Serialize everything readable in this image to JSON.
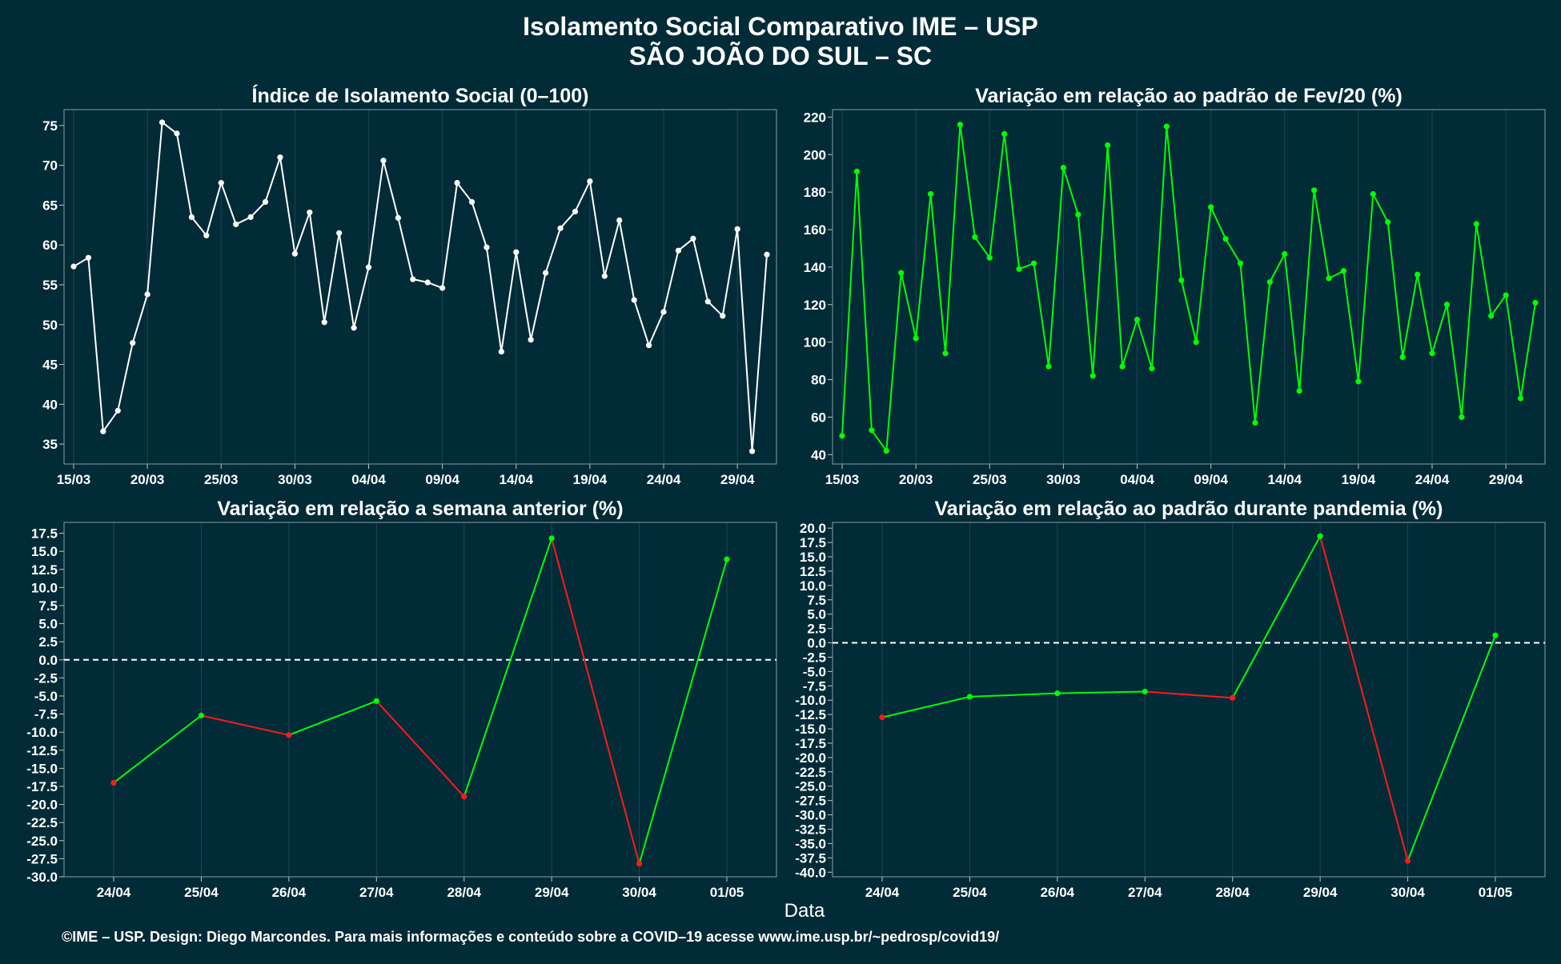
{
  "title_line1": "Isolamento Social Comparativo IME – USP",
  "title_line2": "SÃO JOÃO DO SUL – SC",
  "xlabel": "Data",
  "footer": "©IME – USP. Design: Diego Marcondes. Para mais informações e conteúdo sobre a COVID–19 acesse www.ime.usp.br/~pedrosp/covid19/",
  "colors": {
    "background": "#022b38",
    "white_series": "#ffffff",
    "green": "#00ff00",
    "red": "#ff1a1a",
    "axis_text": "#ffffff"
  },
  "chart_data": [
    {
      "type": "line",
      "title": "Índice de Isolamento Social (0–100)",
      "x": [
        "15/03",
        "16/03",
        "17/03",
        "18/03",
        "19/03",
        "20/03",
        "21/03",
        "22/03",
        "23/03",
        "24/03",
        "25/03",
        "26/03",
        "27/03",
        "28/03",
        "29/03",
        "30/03",
        "31/03",
        "01/04",
        "02/04",
        "03/04",
        "04/04",
        "05/04",
        "06/04",
        "07/04",
        "08/04",
        "09/04",
        "10/04",
        "11/04",
        "12/04",
        "13/04",
        "14/04",
        "15/04",
        "16/04",
        "17/04",
        "18/04",
        "19/04",
        "20/04",
        "21/04",
        "22/04",
        "23/04",
        "24/04",
        "25/04",
        "26/04",
        "27/04",
        "28/04",
        "29/04",
        "30/04",
        "01/05"
      ],
      "x_ticks": [
        "15/03",
        "20/03",
        "25/03",
        "30/03",
        "04/04",
        "09/04",
        "14/04",
        "19/04",
        "24/04",
        "29/04"
      ],
      "values": [
        57.3,
        58.4,
        36.6,
        39.2,
        47.7,
        53.8,
        75.4,
        74.0,
        63.5,
        61.2,
        67.8,
        62.6,
        63.5,
        65.4,
        71.0,
        58.9,
        64.1,
        50.3,
        61.5,
        49.6,
        57.2,
        70.6,
        63.4,
        55.7,
        55.3,
        54.6,
        67.8,
        65.4,
        59.7,
        46.6,
        59.1,
        48.1,
        56.5,
        62.1,
        64.2,
        68.0,
        56.1,
        63.1,
        53.1,
        47.4,
        51.6,
        59.3,
        60.8,
        52.9,
        51.1,
        62.0,
        34.1,
        58.8
      ],
      "ylim": [
        32.5,
        77.0
      ],
      "y_ticks": [
        35,
        40,
        45,
        50,
        55,
        60,
        65,
        70,
        75
      ],
      "color": "#ffffff"
    },
    {
      "type": "line",
      "title": "Variação em relação ao padrão de Fev/20 (%)",
      "x": [
        "15/03",
        "16/03",
        "17/03",
        "18/03",
        "19/03",
        "20/03",
        "21/03",
        "22/03",
        "23/03",
        "24/03",
        "25/03",
        "26/03",
        "27/03",
        "28/03",
        "29/03",
        "30/03",
        "31/03",
        "01/04",
        "02/04",
        "03/04",
        "04/04",
        "05/04",
        "06/04",
        "07/04",
        "08/04",
        "09/04",
        "10/04",
        "11/04",
        "12/04",
        "13/04",
        "14/04",
        "15/04",
        "16/04",
        "17/04",
        "18/04",
        "19/04",
        "20/04",
        "21/04",
        "22/04",
        "23/04",
        "24/04",
        "25/04",
        "26/04",
        "27/04",
        "28/04",
        "29/04",
        "30/04",
        "01/05"
      ],
      "x_ticks": [
        "15/03",
        "20/03",
        "25/03",
        "30/03",
        "04/04",
        "09/04",
        "14/04",
        "19/04",
        "24/04",
        "29/04"
      ],
      "values": [
        50,
        191,
        53,
        42,
        137,
        102,
        179,
        94,
        216,
        156,
        145,
        211,
        139,
        142,
        87,
        193,
        168,
        82,
        205,
        87,
        112,
        86,
        215,
        133,
        100,
        172,
        155,
        142,
        57,
        132,
        147,
        74,
        181,
        134,
        138,
        79,
        179,
        164,
        92,
        136,
        94,
        120,
        60,
        163,
        114,
        125,
        70,
        121
      ],
      "ylim": [
        35,
        224
      ],
      "y_ticks": [
        40,
        60,
        80,
        100,
        120,
        140,
        160,
        180,
        200,
        220
      ],
      "color": "#00ff00"
    },
    {
      "type": "line",
      "title": "Variação em relação a semana anterior (%)",
      "x": [
        "24/04",
        "25/04",
        "26/04",
        "27/04",
        "28/04",
        "29/04",
        "30/04",
        "01/05"
      ],
      "values": [
        -17.0,
        -7.7,
        -10.4,
        -5.7,
        -18.9,
        16.8,
        -28.2,
        13.9
      ],
      "ylim": [
        -30.0,
        19.0
      ],
      "y_ticks": [
        -30.0,
        -27.5,
        -25.0,
        -22.5,
        -20.0,
        -17.5,
        -15.0,
        -12.5,
        -10.0,
        -7.5,
        -5.0,
        -2.5,
        0.0,
        2.5,
        5.0,
        7.5,
        10.0,
        12.5,
        15.0,
        17.5
      ],
      "reference_line": 0,
      "color_up": "#00ff00",
      "color_down": "#ff1a1a"
    },
    {
      "type": "line",
      "title": "Variação em relação ao padrão durante pandemia (%)",
      "x": [
        "24/04",
        "25/04",
        "26/04",
        "27/04",
        "28/04",
        "29/04",
        "30/04",
        "01/05"
      ],
      "values": [
        -13.0,
        -9.4,
        -8.8,
        -8.5,
        -9.6,
        18.6,
        -38.0,
        1.3
      ],
      "ylim": [
        -40.8,
        21.0
      ],
      "y_ticks": [
        -40.0,
        -37.5,
        -35.0,
        -32.5,
        -30.0,
        -27.5,
        -25.0,
        -22.5,
        -20.0,
        -17.5,
        -15.0,
        -12.5,
        -10.0,
        -7.5,
        -5.0,
        -2.5,
        0.0,
        2.5,
        5.0,
        7.5,
        10.0,
        12.5,
        15.0,
        17.5,
        20.0
      ],
      "reference_line": 0,
      "color_up": "#00ff00",
      "color_down": "#ff1a1a"
    }
  ]
}
